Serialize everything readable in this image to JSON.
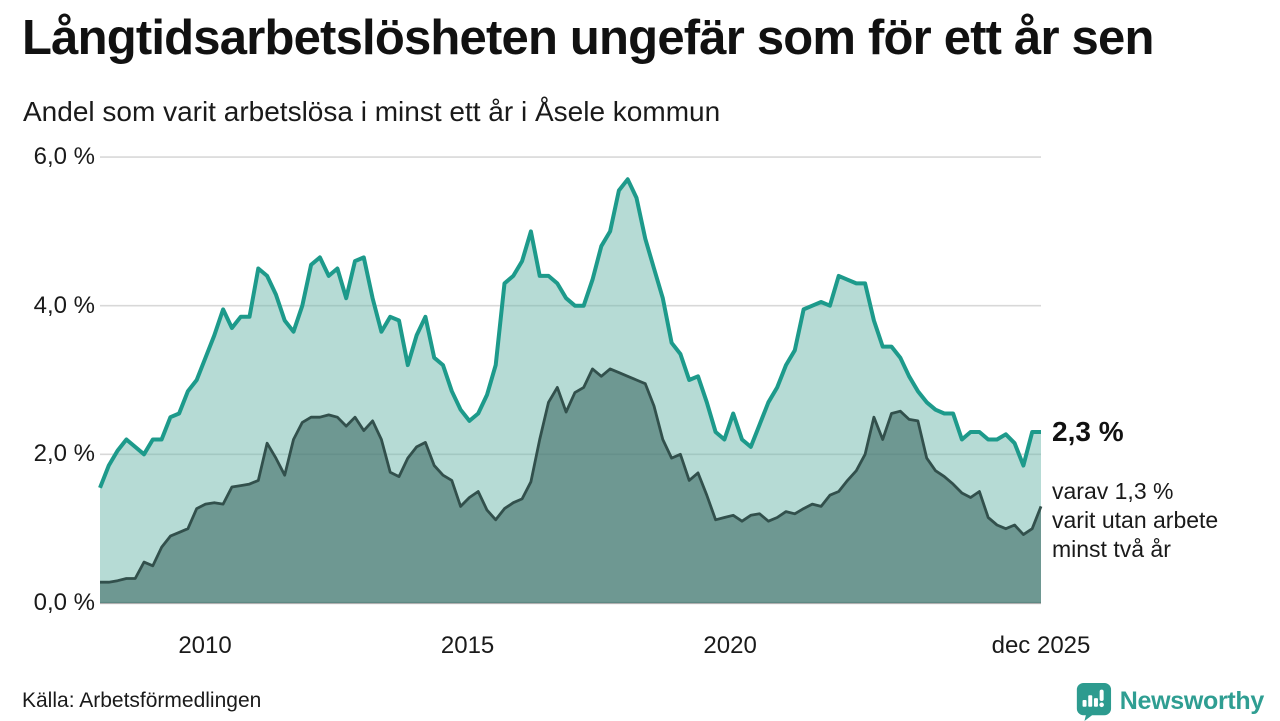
{
  "header": {
    "title": "Långtidsarbetslösheten ungefär som för ett år sen",
    "subtitle": "Andel som varit arbetslösa i minst ett år i Åsele kommun"
  },
  "chart_data": {
    "type": "area",
    "title": "Långtidsarbetslösheten ungefär som för ett år sen",
    "subtitle": "Andel som varit arbetslösa i minst ett år i Åsele kommun",
    "unit": "%",
    "x_start": "jan 2008",
    "x_end": "dec 2025",
    "ylim": [
      0,
      6.2
    ],
    "grid": true,
    "colors": {
      "line_1yr": "#1d9a8b",
      "fill_1yr": "rgba(109,184,172,0.5)",
      "line_2yr": "#32504c",
      "fill_2yr": "rgba(62,106,102,0.6)",
      "gridline": "#d8d8d8",
      "baseline": "#b0b0b0"
    },
    "y_ticks": [
      {
        "value": 6,
        "label": "6,0 %"
      },
      {
        "value": 4,
        "label": "4,0 %"
      },
      {
        "value": 2,
        "label": "2,0 %"
      },
      {
        "value": 0,
        "label": "0,0 %"
      }
    ],
    "x_ticks": [
      {
        "year": 2010,
        "label": "2010"
      },
      {
        "year": 2015,
        "label": "2015"
      },
      {
        "year": 2020,
        "label": "2020"
      },
      {
        "year": 2025.92,
        "label": "dec 2025"
      }
    ],
    "series": [
      {
        "name": "Andel arbetslösa minst ett år",
        "latest_value": "2,3 %",
        "values": [
          1.55,
          1.85,
          2.05,
          2.2,
          2.1,
          2.0,
          2.2,
          2.2,
          2.5,
          2.55,
          2.85,
          3.0,
          3.3,
          3.6,
          3.95,
          3.7,
          3.85,
          3.85,
          4.5,
          4.4,
          4.15,
          3.8,
          3.65,
          4.0,
          4.55,
          4.65,
          4.4,
          4.5,
          4.1,
          4.6,
          4.65,
          4.1,
          3.65,
          3.85,
          3.8,
          3.2,
          3.6,
          3.85,
          3.3,
          3.2,
          2.85,
          2.6,
          2.45,
          2.55,
          2.8,
          3.2,
          4.3,
          4.4,
          4.6,
          5.0,
          4.4,
          4.4,
          4.3,
          4.1,
          4.0,
          4.0,
          4.35,
          4.8,
          5.0,
          5.55,
          5.7,
          5.45,
          4.9,
          4.5,
          4.1,
          3.5,
          3.35,
          3.0,
          3.05,
          2.7,
          2.3,
          2.2,
          2.55,
          2.2,
          2.1,
          2.4,
          2.7,
          2.9,
          3.2,
          3.4,
          3.95,
          4.0,
          4.05,
          4.0,
          4.4,
          4.35,
          4.3,
          4.3,
          3.8,
          3.45,
          3.45,
          3.3,
          3.05,
          2.85,
          2.7,
          2.6,
          2.55,
          2.55,
          2.2,
          2.3,
          2.3,
          2.2,
          2.2,
          2.27,
          2.15,
          1.85,
          2.3,
          2.3
        ]
      },
      {
        "name": "Andel arbetslösa minst två år",
        "latest_value": "1,3 %",
        "values": [
          0.28,
          0.28,
          0.3,
          0.33,
          0.33,
          0.55,
          0.5,
          0.75,
          0.9,
          0.95,
          1.0,
          1.27,
          1.33,
          1.35,
          1.33,
          1.56,
          1.58,
          1.6,
          1.65,
          2.15,
          1.95,
          1.72,
          2.2,
          2.43,
          2.5,
          2.5,
          2.53,
          2.5,
          2.38,
          2.5,
          2.32,
          2.45,
          2.2,
          1.76,
          1.7,
          1.95,
          2.1,
          2.16,
          1.85,
          1.72,
          1.65,
          1.3,
          1.42,
          1.5,
          1.25,
          1.12,
          1.27,
          1.35,
          1.4,
          1.63,
          2.2,
          2.7,
          2.9,
          2.57,
          2.83,
          2.9,
          3.15,
          3.05,
          3.15,
          3.1,
          3.05,
          3.0,
          2.95,
          2.65,
          2.2,
          1.95,
          2.0,
          1.65,
          1.75,
          1.45,
          1.12,
          1.15,
          1.18,
          1.1,
          1.18,
          1.2,
          1.1,
          1.15,
          1.23,
          1.2,
          1.27,
          1.33,
          1.3,
          1.45,
          1.5,
          1.65,
          1.78,
          2.0,
          2.5,
          2.2,
          2.55,
          2.58,
          2.47,
          2.45,
          1.95,
          1.78,
          1.7,
          1.6,
          1.48,
          1.42,
          1.5,
          1.15,
          1.05,
          1.0,
          1.05,
          0.92,
          1.0,
          1.3
        ]
      }
    ],
    "annotation": {
      "total": "2,3 %",
      "detail": "varav 1,3 %\nvarit utan arbete\nminst två år"
    }
  },
  "footer": {
    "source": "Källa: Arbetsförmedlingen",
    "brand": "Newsworthy"
  }
}
